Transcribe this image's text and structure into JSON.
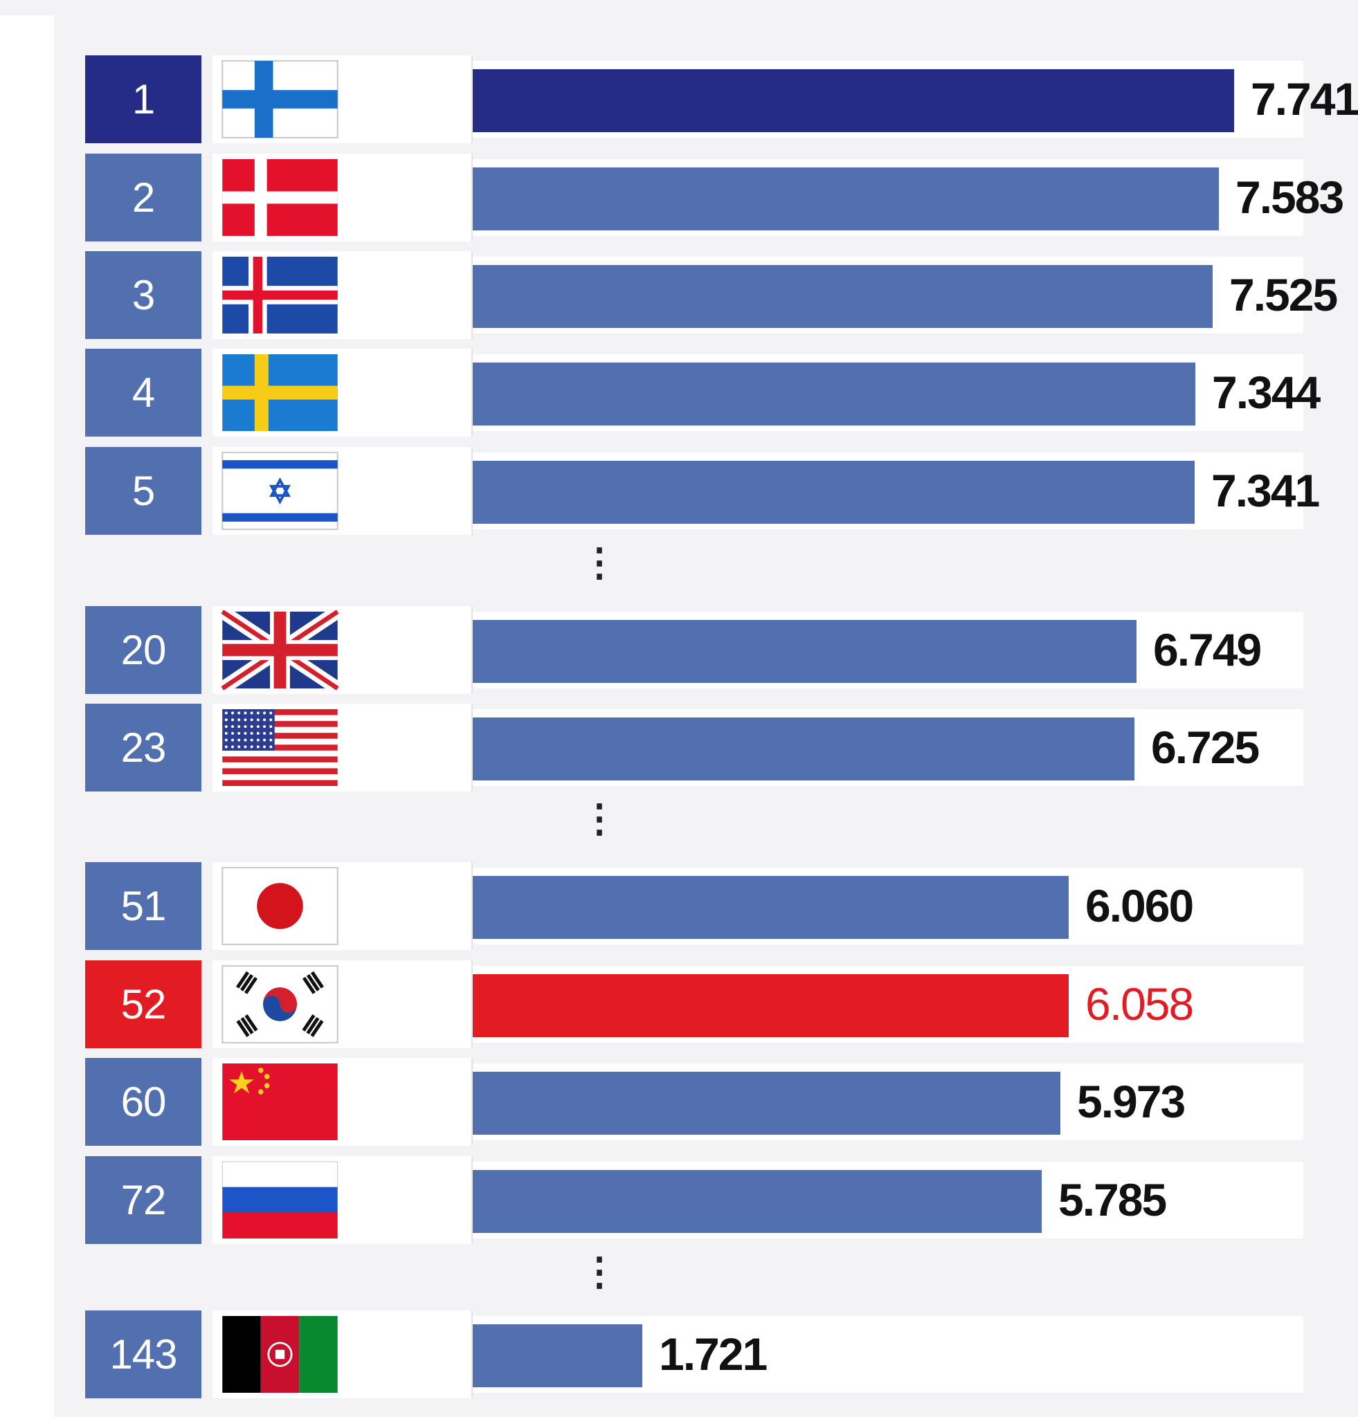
{
  "chart_data": {
    "type": "bar",
    "orientation": "horizontal",
    "rows": [
      {
        "rank": "1",
        "flag": "finland-flag",
        "value": 7.741,
        "label": "7.741",
        "style": "top"
      },
      {
        "rank": "2",
        "flag": "denmark-flag",
        "value": 7.583,
        "label": "7.583",
        "style": "normal"
      },
      {
        "rank": "3",
        "flag": "iceland-flag",
        "value": 7.525,
        "label": "7.525",
        "style": "normal"
      },
      {
        "rank": "4",
        "flag": "sweden-flag",
        "value": 7.344,
        "label": "7.344",
        "style": "normal"
      },
      {
        "rank": "5",
        "flag": "israel-flag",
        "value": 7.341,
        "label": "7.341",
        "style": "normal"
      },
      {
        "rank": "20",
        "flag": "uk-flag",
        "value": 6.749,
        "label": "6.749",
        "style": "normal"
      },
      {
        "rank": "23",
        "flag": "usa-flag",
        "value": 6.725,
        "label": "6.725",
        "style": "normal"
      },
      {
        "rank": "51",
        "flag": "japan-flag",
        "value": 6.06,
        "label": "6.060",
        "style": "normal"
      },
      {
        "rank": "52",
        "flag": "south-korea-flag",
        "value": 6.058,
        "label": "6.058",
        "style": "highlight"
      },
      {
        "rank": "60",
        "flag": "china-flag",
        "value": 5.973,
        "label": "5.973",
        "style": "normal"
      },
      {
        "rank": "72",
        "flag": "russia-flag",
        "value": 5.785,
        "label": "5.785",
        "style": "normal"
      },
      {
        "rank": "143",
        "flag": "afghanistan-flag",
        "value": 1.721,
        "label": "1.721",
        "style": "normal"
      }
    ],
    "ellipsis": "⋮",
    "colors": {
      "top": "#252c87",
      "normal": "#5270b0",
      "highlight": "#e31b23"
    }
  }
}
